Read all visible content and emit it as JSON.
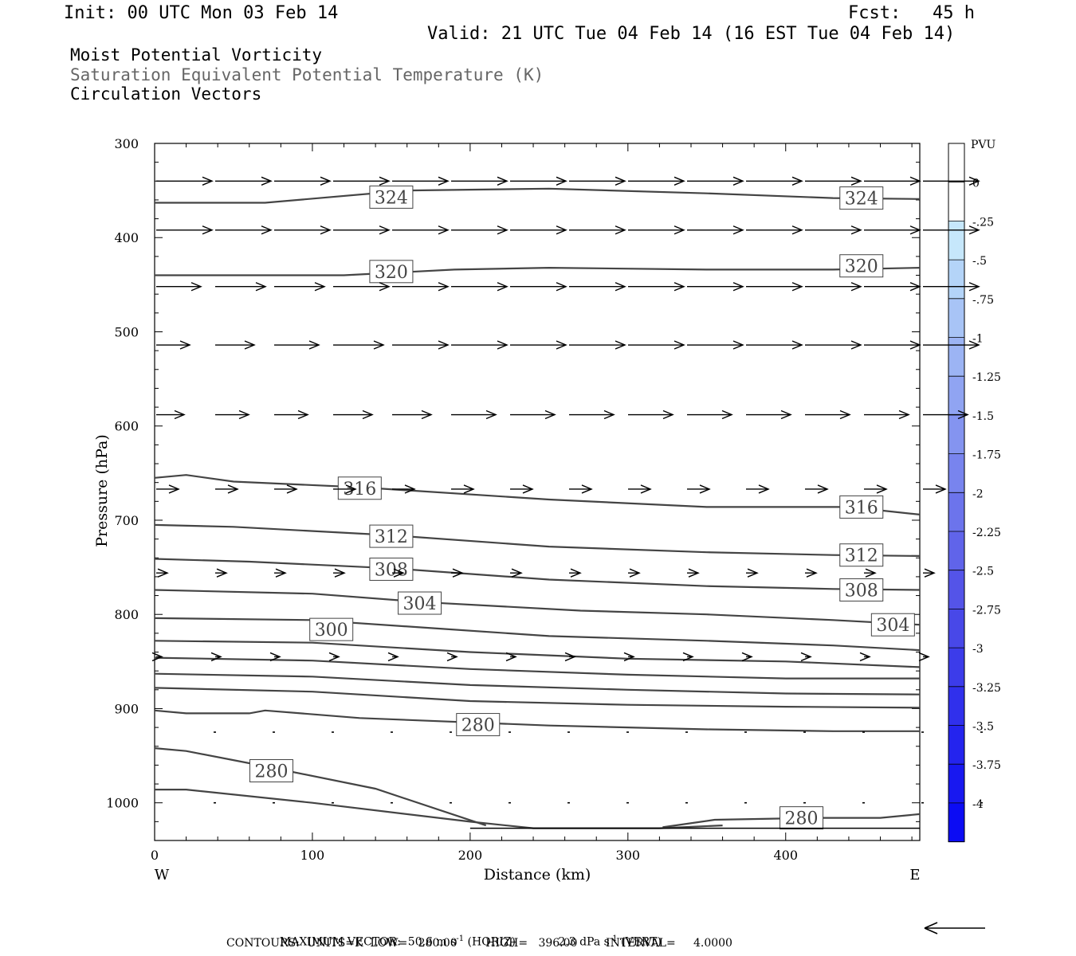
{
  "header": {
    "init": "Init: 00 UTC Mon 03 Feb 14",
    "fcst": "Fcst:   45 h",
    "valid": "Valid: 21 UTC Tue 04 Feb 14 (16 EST Tue 04 Feb 14)",
    "title1": "Moist Potential Vorticity",
    "title2": "Saturation Equivalent Potential Temperature (K)",
    "title3": "Circulation Vectors"
  },
  "chart_data": {
    "type": "contour",
    "xlabel": "Distance (km)",
    "ylabel": "Pressure (hPa)",
    "x_ticks": [
      0,
      100,
      200,
      300,
      400
    ],
    "x_range": [
      0,
      485
    ],
    "y_ticks": [
      300,
      400,
      500,
      600,
      700,
      800,
      900,
      1000
    ],
    "y_range": [
      300,
      1040
    ],
    "x_left_label": "W",
    "x_right_label": "E",
    "colorbar": {
      "unit": "PVU",
      "ticks": [
        "0",
        "-.25",
        "-.5",
        "-.75",
        "-1",
        "-1.25",
        "-1.5",
        "-1.75",
        "-2",
        "-2.25",
        "-2.5",
        "-2.75",
        "-3",
        "-3.25",
        "-3.5",
        "-3.75",
        "-4"
      ],
      "colors": [
        "#ffffff",
        "#ffffff",
        "#c6e7fb",
        "#b4d4f8",
        "#a8c4f6",
        "#9cb4f4",
        "#90a4f2",
        "#8494f0",
        "#7884ee",
        "#6c74ec",
        "#6064ea",
        "#5454e8",
        "#4848e8",
        "#3c3cea",
        "#3030ec",
        "#2424ee",
        "#1818f0",
        "#0c0cf4"
      ]
    },
    "isotherms": [
      {
        "label": "324",
        "points": [
          [
            0,
            363
          ],
          [
            70,
            363
          ],
          [
            160,
            350
          ],
          [
            250,
            348
          ],
          [
            350,
            353
          ],
          [
            430,
            358
          ],
          [
            485,
            359
          ]
        ],
        "labels_at": [
          [
            150,
            357
          ],
          [
            448,
            358
          ]
        ]
      },
      {
        "label": "320",
        "points": [
          [
            0,
            440
          ],
          [
            120,
            440
          ],
          [
            190,
            434
          ],
          [
            250,
            432
          ],
          [
            350,
            434
          ],
          [
            430,
            434
          ],
          [
            485,
            432
          ]
        ],
        "labels_at": [
          [
            150,
            436
          ],
          [
            448,
            430
          ]
        ]
      },
      {
        "label": "316",
        "points": [
          [
            0,
            655
          ],
          [
            20,
            652
          ],
          [
            50,
            659
          ],
          [
            130,
            665
          ],
          [
            250,
            678
          ],
          [
            350,
            686
          ],
          [
            440,
            686
          ],
          [
            485,
            694
          ]
        ],
        "labels_at": [
          [
            130,
            666
          ],
          [
            448,
            686
          ]
        ]
      },
      {
        "label": "312",
        "points": [
          [
            0,
            705
          ],
          [
            50,
            707
          ],
          [
            150,
            716
          ],
          [
            250,
            728
          ],
          [
            350,
            734
          ],
          [
            430,
            737
          ],
          [
            485,
            738
          ]
        ],
        "labels_at": [
          [
            150,
            717
          ],
          [
            448,
            737
          ]
        ]
      },
      {
        "label": "308",
        "points": [
          [
            0,
            741
          ],
          [
            60,
            744
          ],
          [
            150,
            751
          ],
          [
            250,
            763
          ],
          [
            350,
            770
          ],
          [
            430,
            773
          ],
          [
            485,
            774
          ]
        ],
        "labels_at": [
          [
            150,
            752
          ],
          [
            448,
            774
          ]
        ]
      },
      {
        "label": "304",
        "points": [
          [
            0,
            774
          ],
          [
            100,
            778
          ],
          [
            170,
            787
          ],
          [
            270,
            796
          ],
          [
            350,
            800
          ],
          [
            430,
            806
          ],
          [
            485,
            811
          ]
        ],
        "labels_at": [
          [
            168,
            788
          ],
          [
            468,
            811
          ]
        ]
      },
      {
        "label": "300",
        "points": [
          [
            0,
            804
          ],
          [
            100,
            806
          ],
          [
            180,
            815
          ],
          [
            250,
            823
          ],
          [
            350,
            828
          ],
          [
            430,
            833
          ],
          [
            485,
            838
          ]
        ],
        "labels_at": [
          [
            112,
            816
          ]
        ]
      },
      {
        "label": "",
        "points": [
          [
            0,
            828
          ],
          [
            100,
            830
          ],
          [
            200,
            840
          ],
          [
            300,
            847
          ],
          [
            400,
            850
          ],
          [
            485,
            856
          ]
        ],
        "labels_at": []
      },
      {
        "label": "",
        "points": [
          [
            0,
            846
          ],
          [
            100,
            849
          ],
          [
            200,
            858
          ],
          [
            300,
            864
          ],
          [
            400,
            868
          ],
          [
            485,
            868
          ]
        ],
        "labels_at": []
      },
      {
        "label": "",
        "points": [
          [
            0,
            863
          ],
          [
            100,
            866
          ],
          [
            200,
            875
          ],
          [
            300,
            880
          ],
          [
            400,
            884
          ],
          [
            485,
            885
          ]
        ],
        "labels_at": []
      },
      {
        "label": "",
        "points": [
          [
            0,
            878
          ],
          [
            100,
            882
          ],
          [
            200,
            892
          ],
          [
            300,
            896
          ],
          [
            400,
            898
          ],
          [
            485,
            899
          ]
        ],
        "labels_at": []
      },
      {
        "label": "280",
        "points": [
          [
            0,
            902
          ],
          [
            20,
            905
          ],
          [
            60,
            905
          ],
          [
            70,
            902
          ],
          [
            130,
            910
          ],
          [
            250,
            918
          ],
          [
            350,
            922
          ],
          [
            430,
            924
          ],
          [
            485,
            924
          ]
        ],
        "labels_at": [
          [
            205,
            917
          ]
        ]
      },
      {
        "label": "280",
        "points": [
          [
            0,
            942
          ],
          [
            20,
            945
          ],
          [
            60,
            958
          ],
          [
            140,
            985
          ],
          [
            210,
            1024
          ]
        ],
        "labels_at": [
          [
            74,
            966
          ]
        ]
      },
      {
        "label": "",
        "points": [
          [
            0,
            986
          ],
          [
            20,
            986
          ],
          [
            100,
            1000
          ],
          [
            200,
            1020
          ],
          [
            240,
            1027
          ],
          [
            320,
            1027
          ],
          [
            360,
            1024
          ]
        ],
        "labels_at": []
      },
      {
        "label": "280",
        "points": [
          [
            322,
            1026
          ],
          [
            355,
            1018
          ],
          [
            420,
            1016
          ],
          [
            460,
            1016
          ],
          [
            485,
            1012
          ]
        ],
        "labels_at": [
          [
            410,
            1016
          ]
        ]
      }
    ],
    "ground_p": 1027,
    "vectors": [
      {
        "p": 340,
        "u": [
          1,
          1,
          1,
          1,
          1,
          1,
          1,
          1,
          1,
          1,
          1,
          1,
          1,
          1
        ],
        "w": [
          0,
          0,
          0,
          0,
          0,
          0,
          0,
          0,
          0,
          0,
          0,
          0,
          0,
          0
        ]
      },
      {
        "p": 392,
        "u": [
          1,
          1,
          1,
          1,
          1,
          1,
          1,
          1,
          1,
          1,
          1,
          1,
          1,
          1
        ],
        "w": [
          0,
          0,
          0,
          0,
          0,
          0,
          0,
          0,
          0,
          0,
          0,
          0,
          0,
          0
        ]
      },
      {
        "p": 452,
        "u": [
          0.8,
          0.9,
          0.9,
          1,
          1,
          1,
          1,
          1,
          1,
          1,
          1,
          1,
          1,
          1
        ],
        "w": [
          0,
          0,
          0,
          0,
          0,
          0,
          0,
          0,
          0,
          0,
          0,
          0,
          0,
          0
        ]
      },
      {
        "p": 514,
        "u": [
          0.6,
          0.7,
          0.8,
          0.9,
          1,
          1,
          1,
          1,
          1,
          1,
          1,
          1,
          1,
          1
        ],
        "w": [
          0,
          0,
          0,
          0,
          0,
          0,
          0,
          0,
          0,
          0,
          0,
          0,
          0,
          0
        ]
      },
      {
        "p": 588,
        "u": [
          0.5,
          0.6,
          0.6,
          0.7,
          0.7,
          0.8,
          0.8,
          0.8,
          0.8,
          0.8,
          0.8,
          0.8,
          0.8,
          0.8
        ],
        "w": [
          0,
          0,
          0,
          0,
          0,
          0,
          0,
          0,
          0,
          0,
          0,
          0,
          0,
          0
        ]
      },
      {
        "p": 667,
        "u": [
          0.4,
          0.4,
          0.4,
          0.4,
          0.4,
          0.4,
          0.4,
          0.4,
          0.4,
          0.4,
          0.4,
          0.4,
          0.4,
          0.4
        ],
        "w": [
          0,
          0,
          0,
          0,
          0,
          0,
          0,
          0,
          0,
          0,
          0,
          0,
          0,
          0
        ]
      },
      {
        "p": 756,
        "u": [
          0.2,
          0.2,
          0.2,
          0.2,
          0.2,
          0.2,
          0.2,
          0.2,
          0.2,
          0.2,
          0.2,
          0.2,
          0.2,
          0.2
        ],
        "w": [
          0,
          0,
          0,
          0,
          0,
          0,
          0,
          0,
          0,
          0,
          0,
          0,
          0,
          0
        ]
      },
      {
        "p": 845,
        "u": [
          0.1,
          0.1,
          0.1,
          0.1,
          0.1,
          0.1,
          0.1,
          0.1,
          0.1,
          0.1,
          0.1,
          0.1,
          0.1,
          0.1
        ],
        "w": [
          0,
          0,
          0,
          0,
          0,
          0,
          0,
          0,
          0,
          0,
          0,
          0,
          0,
          0
        ]
      },
      {
        "p": 925,
        "u": [
          0.05,
          0.05,
          0.05,
          0.05,
          0.05,
          0.05,
          0.05,
          0.05,
          0.05,
          0.05,
          0.05,
          0.05,
          0.05,
          0.05
        ],
        "w": [
          0,
          0,
          0,
          0,
          0,
          0,
          0,
          0,
          0,
          0,
          0,
          0,
          0,
          0
        ]
      },
      {
        "p": 1000,
        "u": [
          0.04,
          0.04,
          0.04,
          0.04,
          0.04,
          0.04,
          0.04,
          0.04,
          0.04,
          0.04,
          0.04,
          0.04,
          0.04,
          0.04
        ],
        "w": [
          0,
          0,
          0,
          0,
          0,
          0,
          0,
          0,
          0,
          0,
          0,
          0,
          0,
          0
        ]
      }
    ]
  },
  "footer": {
    "max_vector_label": "MAXIMUM VECTOR:",
    "horiz_value": "50.6 m s",
    "horiz_suffix": " (HORIZ)",
    "vert_value": "2.3 dPa s",
    "vert_suffix": " (VERT)",
    "exp": "-1",
    "contours_line": "CONTOURS:  UNITS=K  LOW=   280.00        HIGH=   396.00        INTERVAL=     4.0000"
  }
}
